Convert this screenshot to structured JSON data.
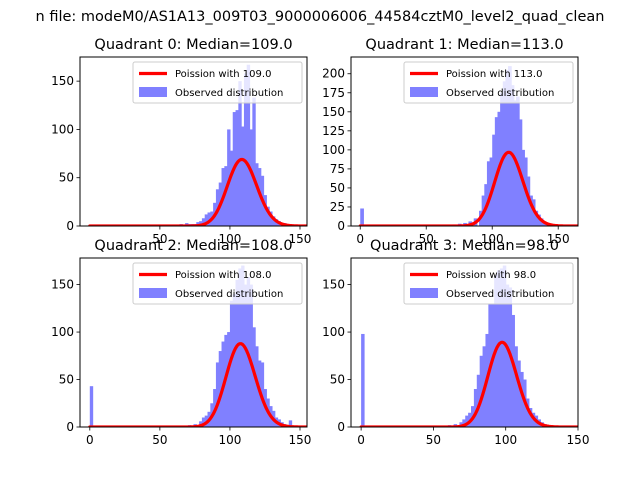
{
  "figure": {
    "suptitle": "n file: modeM0/AS1A13_009T03_9000006006_44584cztM0_level2_quad_clean"
  },
  "colors": {
    "poisson_line": "#ff0000",
    "observed_bars": "#8080ff",
    "legend_border": "#cccccc"
  },
  "chart_data": [
    {
      "type": "bar",
      "title": "Quadrant 0: Median=109.0",
      "xlabel": "",
      "ylabel": "",
      "xlim": [
        -7,
        155
      ],
      "ylim": [
        0,
        175
      ],
      "xticks": [
        50,
        100,
        150
      ],
      "yticks": [
        0,
        50,
        100,
        150
      ],
      "legend_position": "top-right",
      "grid": false,
      "series": [
        {
          "name": "Poission with 109.0",
          "kind": "line",
          "mean": 109.0
        },
        {
          "name": "Observed distribution",
          "kind": "histogram",
          "bin_width": 2.4,
          "bins": [
            [
              60,
              1
            ],
            [
              62,
              1
            ],
            [
              64,
              2
            ],
            [
              66,
              1
            ],
            [
              68,
              3
            ],
            [
              70,
              2
            ],
            [
              72,
              2
            ],
            [
              74,
              2
            ],
            [
              76,
              4
            ],
            [
              78,
              5
            ],
            [
              80,
              8
            ],
            [
              82,
              12
            ],
            [
              84,
              14
            ],
            [
              86,
              15
            ],
            [
              88,
              24
            ],
            [
              90,
              38
            ],
            [
              92,
              45
            ],
            [
              94,
              60
            ],
            [
              96,
              62
            ],
            [
              98,
              100
            ],
            [
              100,
              78
            ],
            [
              102,
              118
            ],
            [
              104,
              120
            ],
            [
              106,
              150
            ],
            [
              108,
              103
            ],
            [
              110,
              158
            ],
            [
              112,
              167
            ],
            [
              114,
              100
            ],
            [
              116,
              133
            ],
            [
              118,
              65
            ],
            [
              120,
              60
            ],
            [
              122,
              52
            ],
            [
              124,
              32
            ],
            [
              126,
              20
            ],
            [
              128,
              15
            ],
            [
              130,
              10
            ],
            [
              132,
              7
            ],
            [
              134,
              5
            ],
            [
              136,
              3
            ],
            [
              138,
              3
            ],
            [
              140,
              2
            ],
            [
              142,
              2
            ]
          ]
        }
      ]
    },
    {
      "type": "bar",
      "title": "Quadrant 1: Median=113.0",
      "xlabel": "",
      "ylabel": "",
      "xlim": [
        -7,
        165
      ],
      "ylim": [
        0,
        222
      ],
      "xticks": [
        0,
        50,
        100,
        150
      ],
      "yticks": [
        0,
        25,
        50,
        75,
        100,
        125,
        150,
        175,
        200
      ],
      "legend_position": "top-right",
      "grid": false,
      "series": [
        {
          "name": "Poission with 113.0",
          "kind": "line",
          "mean": 113.0
        },
        {
          "name": "Observed distribution",
          "kind": "histogram",
          "bin_width": 2.8,
          "bins": [
            [
              0,
              23
            ],
            [
              62,
              1
            ],
            [
              66,
              1
            ],
            [
              70,
              2
            ],
            [
              74,
              3
            ],
            [
              78,
              4
            ],
            [
              82,
              6
            ],
            [
              86,
              10
            ],
            [
              90,
              20
            ],
            [
              92,
              40
            ],
            [
              94,
              55
            ],
            [
              96,
              85
            ],
            [
              98,
              90
            ],
            [
              100,
              120
            ],
            [
              102,
              143
            ],
            [
              104,
              150
            ],
            [
              106,
              175
            ],
            [
              108,
              190
            ],
            [
              110,
              205
            ],
            [
              112,
              210
            ],
            [
              114,
              185
            ],
            [
              116,
              165
            ],
            [
              118,
              170
            ],
            [
              120,
              140
            ],
            [
              122,
              100
            ],
            [
              124,
              90
            ],
            [
              126,
              65
            ],
            [
              128,
              40
            ],
            [
              130,
              35
            ],
            [
              132,
              20
            ],
            [
              134,
              15
            ],
            [
              136,
              10
            ],
            [
              138,
              6
            ],
            [
              140,
              4
            ],
            [
              142,
              2
            ]
          ]
        }
      ]
    },
    {
      "type": "bar",
      "title": "Quadrant 2: Median=108.0",
      "xlabel": "",
      "ylabel": "",
      "xlim": [
        -7,
        155
      ],
      "ylim": [
        0,
        178
      ],
      "xticks": [
        0,
        50,
        100,
        150
      ],
      "yticks": [
        0,
        50,
        100,
        150
      ],
      "legend_position": "top-right",
      "grid": false,
      "series": [
        {
          "name": "Poission with 108.0",
          "kind": "line",
          "mean": 108.0
        },
        {
          "name": "Observed distribution",
          "kind": "histogram",
          "bin_width": 2.4,
          "bins": [
            [
              0,
              43
            ],
            [
              64,
              1
            ],
            [
              70,
              2
            ],
            [
              74,
              3
            ],
            [
              78,
              6
            ],
            [
              80,
              10
            ],
            [
              82,
              12
            ],
            [
              84,
              16
            ],
            [
              86,
              25
            ],
            [
              88,
              40
            ],
            [
              90,
              68
            ],
            [
              92,
              80
            ],
            [
              94,
              90
            ],
            [
              96,
              97
            ],
            [
              98,
              100
            ],
            [
              100,
              133
            ],
            [
              102,
              140
            ],
            [
              104,
              155
            ],
            [
              106,
              167
            ],
            [
              108,
              170
            ],
            [
              110,
              150
            ],
            [
              112,
              158
            ],
            [
              114,
              150
            ],
            [
              116,
              105
            ],
            [
              118,
              85
            ],
            [
              120,
              70
            ],
            [
              122,
              68
            ],
            [
              124,
              40
            ],
            [
              126,
              30
            ],
            [
              128,
              22
            ],
            [
              130,
              17
            ],
            [
              132,
              10
            ],
            [
              134,
              8
            ],
            [
              136,
              5
            ],
            [
              138,
              3
            ],
            [
              140,
              2
            ],
            [
              142,
              7
            ]
          ]
        }
      ]
    },
    {
      "type": "bar",
      "title": "Quadrant 3: Median=98.0",
      "xlabel": "",
      "ylabel": "",
      "xlim": [
        -7,
        150
      ],
      "ylim": [
        0,
        178
      ],
      "xticks": [
        0,
        50,
        100,
        150
      ],
      "yticks": [
        0,
        50,
        100,
        150
      ],
      "legend_position": "top-right",
      "grid": false,
      "series": [
        {
          "name": "Poission with 98.0",
          "kind": "line",
          "mean": 98.0
        },
        {
          "name": "Observed distribution",
          "kind": "histogram",
          "bin_width": 2.4,
          "bins": [
            [
              0,
              98
            ],
            [
              54,
              1
            ],
            [
              60,
              2
            ],
            [
              64,
              3
            ],
            [
              68,
              5
            ],
            [
              70,
              8
            ],
            [
              72,
              12
            ],
            [
              74,
              15
            ],
            [
              76,
              22
            ],
            [
              78,
              40
            ],
            [
              80,
              55
            ],
            [
              82,
              75
            ],
            [
              84,
              85
            ],
            [
              86,
              98
            ],
            [
              88,
              130
            ],
            [
              90,
              130
            ],
            [
              92,
              160
            ],
            [
              94,
              165
            ],
            [
              96,
              167
            ],
            [
              98,
              170
            ],
            [
              100,
              150
            ],
            [
              102,
              147
            ],
            [
              104,
              118
            ],
            [
              106,
              85
            ],
            [
              108,
              70
            ],
            [
              110,
              58
            ],
            [
              112,
              50
            ],
            [
              114,
              30
            ],
            [
              116,
              20
            ],
            [
              118,
              15
            ],
            [
              120,
              12
            ],
            [
              122,
              8
            ],
            [
              124,
              5
            ],
            [
              126,
              3
            ],
            [
              128,
              2
            ],
            [
              130,
              1
            ]
          ]
        }
      ]
    }
  ]
}
